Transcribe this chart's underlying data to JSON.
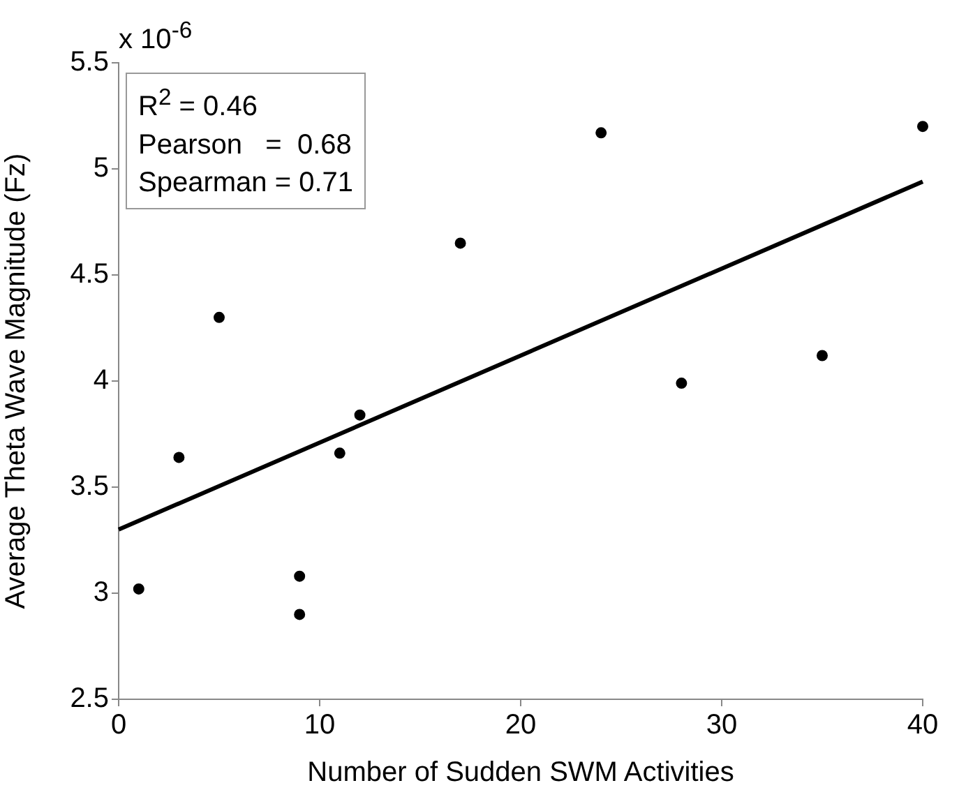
{
  "chart_data": {
    "type": "scatter",
    "xlabel": "Number of Sudden SWM Activities",
    "ylabel": "Average Theta Wave Magnitude (Fz)",
    "xlim": [
      0,
      40
    ],
    "xticks": [
      0,
      10,
      20,
      30,
      40
    ],
    "ylim": [
      2.5,
      5.5
    ],
    "yticks": [
      2.5,
      3,
      3.5,
      4,
      4.5,
      5,
      5.5
    ],
    "grid": false,
    "legend": false,
    "marker": "circle",
    "annotations": [
      "x 10$^{-6}$",
      "R$^{2}$ = 0.46",
      "Pearson   =  0.68",
      "Spearman = 0.71"
    ],
    "series": [
      {
        "color": "#000000",
        "x": [
          1,
          3,
          5,
          9,
          9,
          11,
          12,
          17,
          24,
          28,
          35,
          40
        ],
        "values": [
          3.02,
          3.64,
          4.3,
          3.08,
          2.9,
          3.66,
          3.84,
          4.65,
          5.17,
          3.99,
          4.12,
          5.2
        ]
      },
      {
        "type": "line",
        "color": "#000000",
        "marker": "none",
        "line_style": "solid",
        "x": [
          0,
          40
        ],
        "values": [
          3.3,
          4.94
        ]
      }
    ]
  }
}
